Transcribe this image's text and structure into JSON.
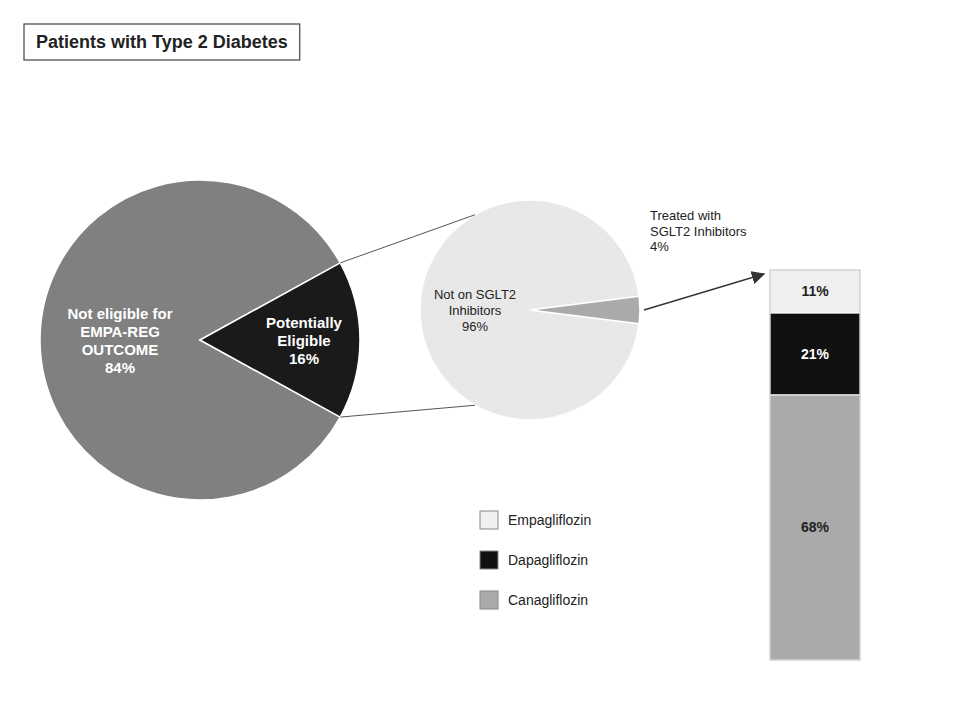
{
  "chart_data": [
    {
      "type": "pie",
      "title": "Patients with Type 2 Diabetes",
      "categories": [
        "Not eligible for\nEMPA-REG\nOUTCOME",
        "Potentially\nEligible"
      ],
      "values": [
        84,
        16
      ],
      "value_labels": [
        "84%",
        "16%"
      ],
      "data_labels": true,
      "colors": [
        "#808080",
        "#1a1a1a"
      ]
    },
    {
      "type": "pie",
      "categories": [
        "Not on SGLT2\nInhibitors",
        "Treated with\nSGLT2 Inhibitors"
      ],
      "values": [
        96,
        4
      ],
      "value_labels": [
        "96%",
        "4%"
      ],
      "data_labels": true,
      "colors": [
        "#e8e8e8",
        "#aaaaaa"
      ]
    },
    {
      "type": "bar",
      "stacked": true,
      "categories": [
        null
      ],
      "series": [
        {
          "name": "Canagliflozin",
          "color": "#aaaaaa",
          "values": [
            68
          ],
          "value_labels": [
            "68%"
          ]
        },
        {
          "name": "Dapagliflozin",
          "color": "#111111",
          "values": [
            21
          ],
          "value_labels": [
            "21%"
          ]
        },
        {
          "name": "Empagliflozin",
          "color": "#f0f0f0",
          "values": [
            11
          ],
          "value_labels": [
            "11%"
          ]
        }
      ],
      "ylim": [
        0,
        100
      ],
      "data_labels": true,
      "tick_labels": false,
      "legend": "left"
    }
  ]
}
